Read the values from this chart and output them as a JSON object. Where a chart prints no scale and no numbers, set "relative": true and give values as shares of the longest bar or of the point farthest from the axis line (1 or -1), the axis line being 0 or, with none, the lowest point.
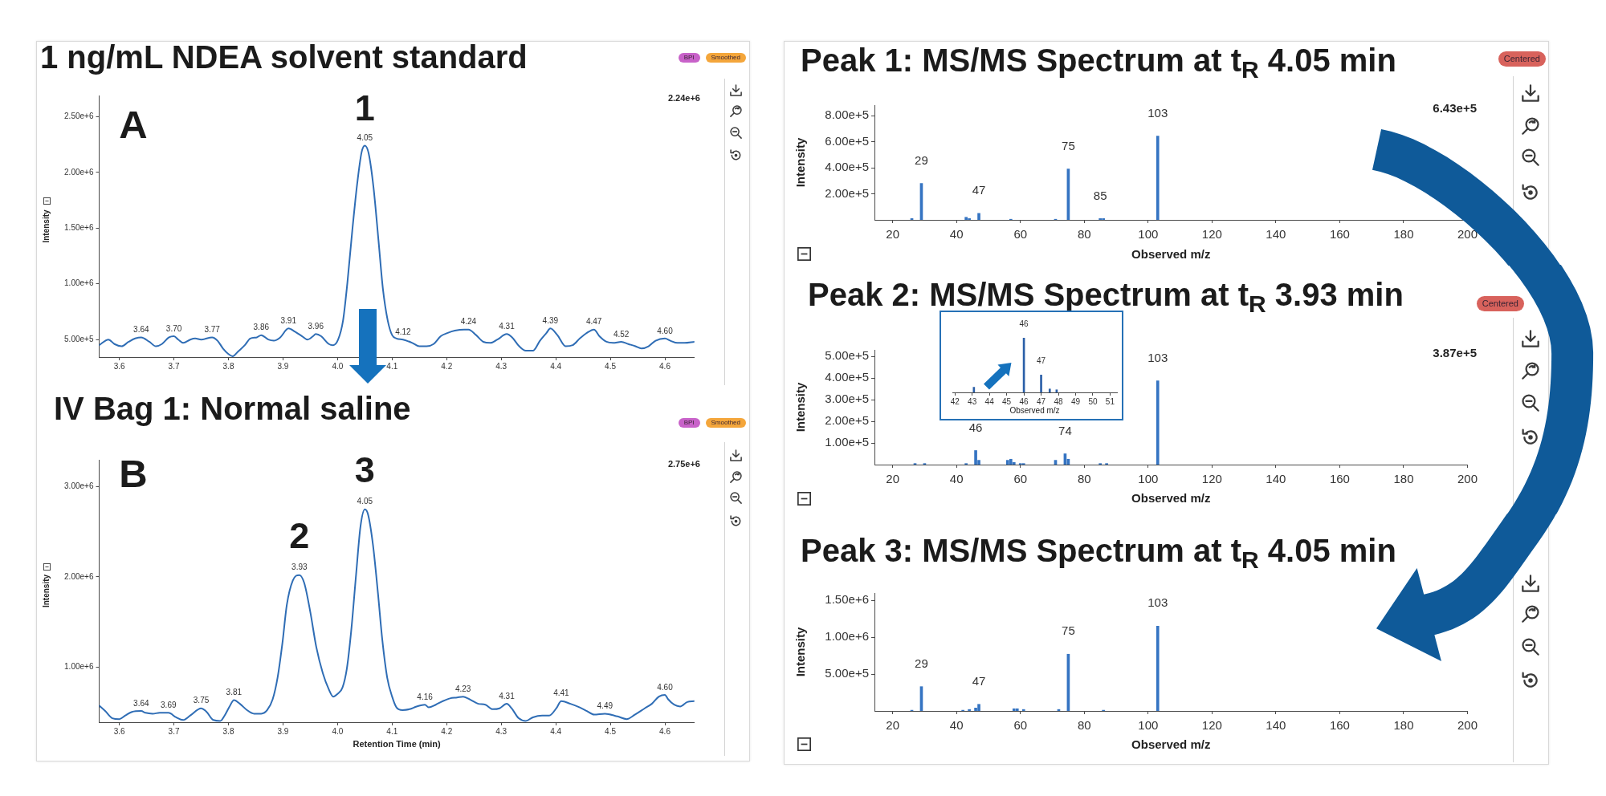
{
  "chart_data": [
    {
      "type": "line",
      "title": "1 ng/mL NDEA solvent standard",
      "ylabel": "Intensity",
      "color": "#2f6db5",
      "x": [
        3.563,
        3.58,
        3.591,
        3.604,
        3.617,
        3.629,
        3.64,
        3.655,
        3.667,
        3.678,
        3.691,
        3.7,
        3.708,
        3.717,
        3.73,
        3.739,
        3.75,
        3.77,
        3.78,
        3.79,
        3.8,
        3.808,
        3.817,
        3.83,
        3.84,
        3.852,
        3.86,
        3.873,
        3.883,
        3.895,
        3.91,
        3.922,
        3.935,
        3.945,
        3.955,
        3.96,
        3.97,
        3.984,
        3.992,
        4.001,
        4.01,
        4.018,
        4.027,
        4.036,
        4.044,
        4.05,
        4.057,
        4.066,
        4.075,
        4.083,
        4.092,
        4.1,
        4.108,
        4.12,
        4.137,
        4.15,
        4.163,
        4.176,
        4.189,
        4.202,
        4.215,
        4.232,
        4.24,
        4.254,
        4.267,
        4.28,
        4.293,
        4.31,
        4.32,
        4.333,
        4.345,
        4.358,
        4.371,
        4.383,
        4.39,
        4.403,
        4.418,
        4.431,
        4.444,
        4.457,
        4.47,
        4.48,
        4.493,
        4.505,
        4.52,
        4.533,
        4.546,
        4.557,
        4.57,
        4.583,
        4.6,
        4.61,
        4.623,
        4.636,
        4.654
      ],
      "values": [
        450000,
        500000,
        460000,
        440000,
        480000,
        510000,
        520000,
        480000,
        440000,
        460000,
        520000,
        530000,
        500000,
        470000,
        500000,
        510000,
        500000,
        520000,
        490000,
        420000,
        370000,
        350000,
        390000,
        450000,
        510000,
        520000,
        540000,
        500000,
        490000,
        520000,
        600000,
        570000,
        530000,
        500000,
        530000,
        550000,
        530000,
        460000,
        450000,
        500000,
        670000,
        1010000,
        1480000,
        1900000,
        2180000,
        2240000,
        2170000,
        1860000,
        1390000,
        960000,
        670000,
        540000,
        510000,
        500000,
        470000,
        440000,
        440000,
        460000,
        530000,
        560000,
        580000,
        590000,
        590000,
        540000,
        480000,
        470000,
        500000,
        550000,
        520000,
        440000,
        400000,
        400000,
        490000,
        560000,
        600000,
        540000,
        440000,
        450000,
        510000,
        560000,
        590000,
        530000,
        480000,
        470000,
        480000,
        460000,
        440000,
        420000,
        440000,
        490000,
        510000,
        490000,
        470000,
        470000,
        480000
      ],
      "xlim": [
        3.563,
        4.654
      ],
      "xticks": [
        3.6,
        3.7,
        3.8,
        3.9,
        {
          "value": 4,
          "label": "4.0"
        },
        4.1,
        4.2,
        4.3,
        4.4,
        4.5,
        4.6
      ],
      "ylim": [
        343000,
        2690000
      ],
      "yticks": [
        {
          "value": 500000,
          "label": "5.00e+5"
        },
        {
          "value": 1000000,
          "label": "1.00e+6"
        },
        {
          "value": 1500000,
          "label": "1.50e+6"
        },
        {
          "value": 2000000,
          "label": "2.00e+6"
        },
        {
          "value": 2500000,
          "label": "2.50e+6"
        }
      ],
      "annotations": [
        "A",
        "2.24e+6",
        "BPI",
        "Smoothed",
        {
          "text": "3.64",
          "x": 3.64,
          "y": 520000
        },
        {
          "text": "3.70",
          "x": 3.7,
          "y": 530000
        },
        {
          "text": "3.77",
          "x": 3.77,
          "y": 520000
        },
        {
          "text": "3.86",
          "x": 3.86,
          "y": 540000
        },
        {
          "text": "3.91",
          "x": 3.91,
          "y": 600000
        },
        {
          "text": "3.96",
          "x": 3.96,
          "y": 550000
        },
        {
          "text": "4.05",
          "x": 4.05,
          "y": 2240000
        },
        {
          "text": "4.12",
          "x": 4.12,
          "y": 500000
        },
        {
          "text": "4.24",
          "x": 4.24,
          "y": 590000
        },
        {
          "text": "4.31",
          "x": 4.31,
          "y": 550000
        },
        {
          "text": "4.39",
          "x": 4.39,
          "y": 600000
        },
        {
          "text": "4.47",
          "x": 4.47,
          "y": 590000
        },
        {
          "text": "4.52",
          "x": 4.52,
          "y": 480000
        },
        {
          "text": "4.60",
          "x": 4.6,
          "y": 510000
        },
        {
          "text": "1",
          "x": 4.05,
          "y": 2240000
        }
      ]
    },
    {
      "type": "line",
      "title": "IV Bag 1: Normal saline",
      "xlabel": "Retention Time (min)",
      "ylabel": "Intensity",
      "color": "#2f6db5",
      "x": [
        3.563,
        3.574,
        3.587,
        3.6,
        3.611,
        3.623,
        3.64,
        3.648,
        3.661,
        3.674,
        3.69,
        3.704,
        3.717,
        3.73,
        3.75,
        3.76,
        3.772,
        3.785,
        3.793,
        3.802,
        3.81,
        3.821,
        3.834,
        3.847,
        3.86,
        3.871,
        3.881,
        3.89,
        3.899,
        3.907,
        3.918,
        3.93,
        3.939,
        3.95,
        3.961,
        3.973,
        3.984,
        3.992,
        4.0,
        4.009,
        4.017,
        4.025,
        4.034,
        4.042,
        4.05,
        4.056,
        4.065,
        4.074,
        4.082,
        4.091,
        4.1,
        4.108,
        4.119,
        4.132,
        4.145,
        4.16,
        4.167,
        4.18,
        4.193,
        4.206,
        4.219,
        4.23,
        4.245,
        4.258,
        4.271,
        4.284,
        4.297,
        4.31,
        4.319,
        4.332,
        4.345,
        4.358,
        4.375,
        4.388,
        4.401,
        4.41,
        4.427,
        4.444,
        4.457,
        4.47,
        4.49,
        4.513,
        4.53,
        4.545,
        4.563,
        4.576,
        4.589,
        4.6,
        4.606,
        4.617,
        4.628,
        4.641,
        4.654
      ],
      "values": [
        570000,
        510000,
        430000,
        420000,
        460000,
        500000,
        510000,
        490000,
        480000,
        490000,
        490000,
        440000,
        410000,
        460000,
        540000,
        500000,
        410000,
        400000,
        460000,
        560000,
        630000,
        590000,
        520000,
        480000,
        480000,
        520000,
        640000,
        880000,
        1270000,
        1690000,
        1960000,
        2020000,
        1930000,
        1610000,
        1220000,
        930000,
        750000,
        670000,
        700000,
        770000,
        980000,
        1400000,
        2030000,
        2560000,
        2750000,
        2690000,
        2350000,
        1820000,
        1300000,
        880000,
        670000,
        550000,
        520000,
        530000,
        560000,
        580000,
        550000,
        580000,
        620000,
        650000,
        660000,
        670000,
        630000,
        590000,
        580000,
        530000,
        540000,
        590000,
        540000,
        430000,
        400000,
        440000,
        460000,
        460000,
        540000,
        620000,
        590000,
        550000,
        510000,
        470000,
        480000,
        450000,
        420000,
        470000,
        540000,
        590000,
        670000,
        690000,
        640000,
        580000,
        560000,
        610000,
        620000
      ],
      "xlim": [
        3.563,
        4.654
      ],
      "xticks": [
        3.6,
        3.7,
        3.8,
        3.9,
        {
          "value": 4,
          "label": "4.0"
        },
        4.1,
        4.2,
        4.3,
        4.4,
        4.5,
        4.6
      ],
      "ylim": [
        386000,
        3300000
      ],
      "yticks": [
        {
          "value": 1000000,
          "label": "1.00e+6"
        },
        {
          "value": 2000000,
          "label": "2.00e+6"
        },
        {
          "value": 3000000,
          "label": "3.00e+6"
        }
      ],
      "annotations": [
        "B",
        "2.75e+6",
        "BPI",
        "Smoothed",
        {
          "text": "3.64",
          "x": 3.64,
          "y": 510000
        },
        {
          "text": "3.69",
          "x": 3.69,
          "y": 490000
        },
        {
          "text": "3.75",
          "x": 3.75,
          "y": 540000
        },
        {
          "text": "3.81",
          "x": 3.81,
          "y": 630000
        },
        {
          "text": "3.93",
          "x": 3.93,
          "y": 2020000
        },
        {
          "text": "4.05",
          "x": 4.05,
          "y": 2750000
        },
        {
          "text": "4.16",
          "x": 4.16,
          "y": 580000
        },
        {
          "text": "4.23",
          "x": 4.23,
          "y": 670000
        },
        {
          "text": "4.31",
          "x": 4.31,
          "y": 590000
        },
        {
          "text": "4.41",
          "x": 4.41,
          "y": 620000
        },
        {
          "text": "4.49",
          "x": 4.49,
          "y": 480000
        },
        {
          "text": "4.60",
          "x": 4.6,
          "y": 690000
        },
        {
          "text": "2",
          "x": 3.93,
          "y": 2020000
        },
        {
          "text": "3",
          "x": 4.05,
          "y": 2750000
        }
      ]
    },
    {
      "type": "bar",
      "title": "Peak 1: MS/MS Spectrum at t$_{R}$ 4.05 min",
      "xlabel": "Observed m/z",
      "ylabel": "Intensity",
      "color": "#3574c2",
      "x": [
        26,
        29,
        43,
        44,
        47,
        57,
        71,
        75,
        85,
        86,
        103
      ],
      "values": [
        10000,
        280000,
        20000,
        10000,
        50000,
        5000,
        5000,
        390000,
        10000,
        10000,
        643000
      ],
      "xlim": [
        14.3,
        200
      ],
      "xticks": [
        20,
        40,
        60,
        80,
        100,
        120,
        140,
        160,
        180,
        200
      ],
      "ylim": [
        0,
        880000
      ],
      "yticks": [
        {
          "value": 200000,
          "label": "2.00e+5"
        },
        {
          "value": 400000,
          "label": "4.00e+5"
        },
        {
          "value": 600000,
          "label": "6.00e+5"
        },
        {
          "value": 800000,
          "label": "8.00e+5"
        }
      ],
      "annotations": [
        "6.43e+5",
        "Centered",
        {
          "text": "29",
          "x": 29,
          "y": 280000
        },
        {
          "text": "47",
          "x": 47,
          "y": 50000
        },
        {
          "text": "75",
          "x": 75,
          "y": 390000
        },
        {
          "text": "85",
          "x": 85,
          "y": 10000
        },
        {
          "text": "103",
          "x": 103,
          "y": 643000
        }
      ]
    },
    {
      "type": "bar",
      "title": "Peak 2: MS/MS Spectrum at t$_{R}$ 3.93 min",
      "xlabel": "Observed m/z",
      "ylabel": "Intensity",
      "color": "#3574c2",
      "x": [
        27,
        30,
        43,
        46,
        47,
        56,
        57,
        58,
        60,
        61,
        71,
        74,
        75,
        85,
        87,
        103
      ],
      "values": [
        5000,
        5000,
        5000,
        65000,
        20000,
        20000,
        25000,
        10000,
        5000,
        5000,
        20000,
        50000,
        25000,
        5000,
        5000,
        387000
      ],
      "xlim": [
        14.3,
        200
      ],
      "xticks": [
        20,
        40,
        60,
        80,
        100,
        120,
        140,
        160,
        180,
        200
      ],
      "ylim": [
        0,
        530000
      ],
      "yticks": [
        {
          "value": 100000,
          "label": "1.00e+5"
        },
        {
          "value": 200000,
          "label": "2.00e+5"
        },
        {
          "value": 300000,
          "label": "3.00e+5"
        },
        {
          "value": 400000,
          "label": "4.00e+5"
        },
        {
          "value": 500000,
          "label": "5.00e+5"
        }
      ],
      "annotations": [
        "3.87e+5",
        "Centered",
        {
          "text": "46",
          "x": 46,
          "y": 65000
        },
        {
          "text": "74",
          "x": 74,
          "y": 50000
        },
        {
          "text": "103",
          "x": 103,
          "y": 387000
        }
      ]
    },
    {
      "type": "bar",
      "title": "Peak 3: MS/MS Spectrum at t$_{R}$ 4.05 min",
      "xlabel": "Observed m/z",
      "ylabel": "Intensity",
      "color": "#3574c2",
      "x": [
        26,
        29,
        42,
        44,
        46,
        47,
        58,
        59,
        61,
        72,
        75,
        86,
        103
      ],
      "values": [
        10000,
        330000,
        10000,
        20000,
        40000,
        90000,
        30000,
        30000,
        20000,
        20000,
        770000,
        10000,
        1150000
      ],
      "xlim": [
        14.3,
        200
      ],
      "xticks": [
        20,
        40,
        60,
        80,
        100,
        120,
        140,
        160,
        180,
        200
      ],
      "ylim": [
        0,
        1600000
      ],
      "yticks": [
        {
          "value": 500000,
          "label": "5.00e+5"
        },
        {
          "value": 1000000,
          "label": "1.00e+6"
        },
        {
          "value": 1500000,
          "label": "1.50e+6"
        }
      ],
      "annotations": [
        {
          "text": "29",
          "x": 29,
          "y": 330000
        },
        {
          "text": "47",
          "x": 47,
          "y": 90000
        },
        {
          "text": "75",
          "x": 75,
          "y": 770000
        },
        {
          "text": "103",
          "x": 103,
          "y": 1150000
        }
      ]
    },
    {
      "type": "bar",
      "relative": true,
      "xlabel": "Observed m/z",
      "color": "#2b5fa8",
      "x": [
        43.1,
        46,
        47,
        47.5,
        47.9
      ],
      "values": [
        0.095,
        1,
        0.32,
        0.063,
        0.048
      ],
      "xlim": [
        41.85,
        51.4
      ],
      "xticks": [
        42,
        43,
        44,
        45,
        46,
        47,
        48,
        49,
        50,
        51
      ],
      "annotations": [
        {
          "text": "46",
          "x": 46,
          "y": 1
        },
        {
          "text": "47",
          "x": 47,
          "y": 0.32
        }
      ]
    }
  ]
}
